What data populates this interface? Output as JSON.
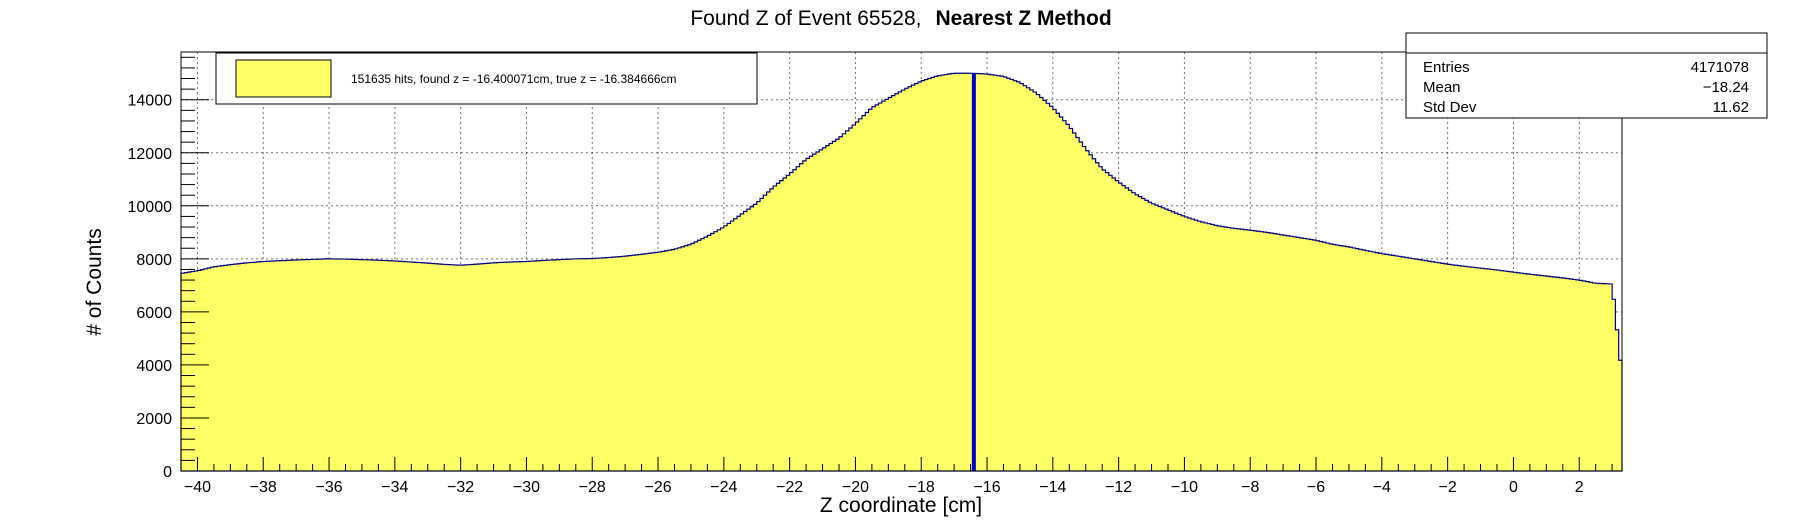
{
  "chart_data": {
    "type": "histogram",
    "title": "Found Z of Event 65528,",
    "title_bold": "Nearest Z Method",
    "xlabel": "Z coordinate [cm]",
    "ylabel": "# of Counts",
    "xlim": [
      -40.5,
      3.3
    ],
    "ylim": [
      0,
      15800
    ],
    "xticks": [
      -40,
      -38,
      -36,
      -34,
      -32,
      -30,
      -28,
      -26,
      -24,
      -22,
      -20,
      -18,
      -16,
      -14,
      -12,
      -10,
      -8,
      -6,
      -4,
      -2,
      0,
      2
    ],
    "yticks": [
      0,
      2000,
      4000,
      6000,
      8000,
      10000,
      12000,
      14000
    ],
    "grid": true,
    "fill_color": "#ffff66",
    "line_color": "#000080",
    "marker_color": "#0000cc",
    "marker_x": -16.4,
    "legend": {
      "position": "top-left",
      "label": "151635 hits, found z = -16.400071cm, true z = -16.384666cm"
    },
    "stats": {
      "position": "top-right",
      "rows": [
        {
          "label": "Entries",
          "value": "4171078"
        },
        {
          "label": "Mean",
          "value": "−18.24"
        },
        {
          "label": "Std Dev",
          "value": "11.62"
        }
      ]
    },
    "x": [
      -40.5,
      -40.0,
      -39.5,
      -39.0,
      -38.5,
      -38.0,
      -37.5,
      -37.0,
      -36.5,
      -36.0,
      -35.5,
      -35.0,
      -34.5,
      -34.0,
      -33.5,
      -33.0,
      -32.5,
      -32.0,
      -31.5,
      -31.0,
      -30.5,
      -30.0,
      -29.5,
      -29.0,
      -28.5,
      -28.0,
      -27.5,
      -27.0,
      -26.5,
      -26.0,
      -25.5,
      -25.0,
      -24.5,
      -24.0,
      -23.5,
      -23.0,
      -22.5,
      -22.0,
      -21.5,
      -21.0,
      -20.5,
      -20.0,
      -19.5,
      -19.0,
      -18.5,
      -18.0,
      -17.5,
      -17.0,
      -16.5,
      -16.0,
      -15.5,
      -15.0,
      -14.5,
      -14.0,
      -13.5,
      -13.0,
      -12.5,
      -12.0,
      -11.5,
      -11.0,
      -10.5,
      -10.0,
      -9.5,
      -9.0,
      -8.5,
      -8.0,
      -7.5,
      -7.0,
      -6.5,
      -6.0,
      -5.5,
      -5.0,
      -4.5,
      -4.0,
      -3.5,
      -3.0,
      -2.5,
      -2.0,
      -1.5,
      -1.0,
      -0.5,
      0.0,
      0.5,
      1.0,
      1.5,
      2.0,
      2.5,
      3.0,
      3.3
    ],
    "y": [
      7450,
      7550,
      7700,
      7780,
      7850,
      7900,
      7930,
      7960,
      7980,
      8000,
      7990,
      7970,
      7950,
      7920,
      7880,
      7840,
      7790,
      7760,
      7800,
      7850,
      7880,
      7900,
      7940,
      7970,
      8000,
      8010,
      8050,
      8100,
      8170,
      8250,
      8360,
      8550,
      8850,
      9200,
      9650,
      10100,
      10700,
      11200,
      11750,
      12150,
      12550,
      13100,
      13700,
      14050,
      14400,
      14700,
      14900,
      15000,
      15000,
      14970,
      14880,
      14650,
      14250,
      13700,
      13000,
      12150,
      11400,
      10900,
      10450,
      10100,
      9850,
      9600,
      9400,
      9250,
      9150,
      9080,
      9000,
      8900,
      8800,
      8700,
      8550,
      8450,
      8320,
      8200,
      8100,
      8000,
      7900,
      7800,
      7720,
      7650,
      7580,
      7500,
      7420,
      7350,
      7280,
      7200,
      7080,
      7050,
      3600
    ]
  }
}
